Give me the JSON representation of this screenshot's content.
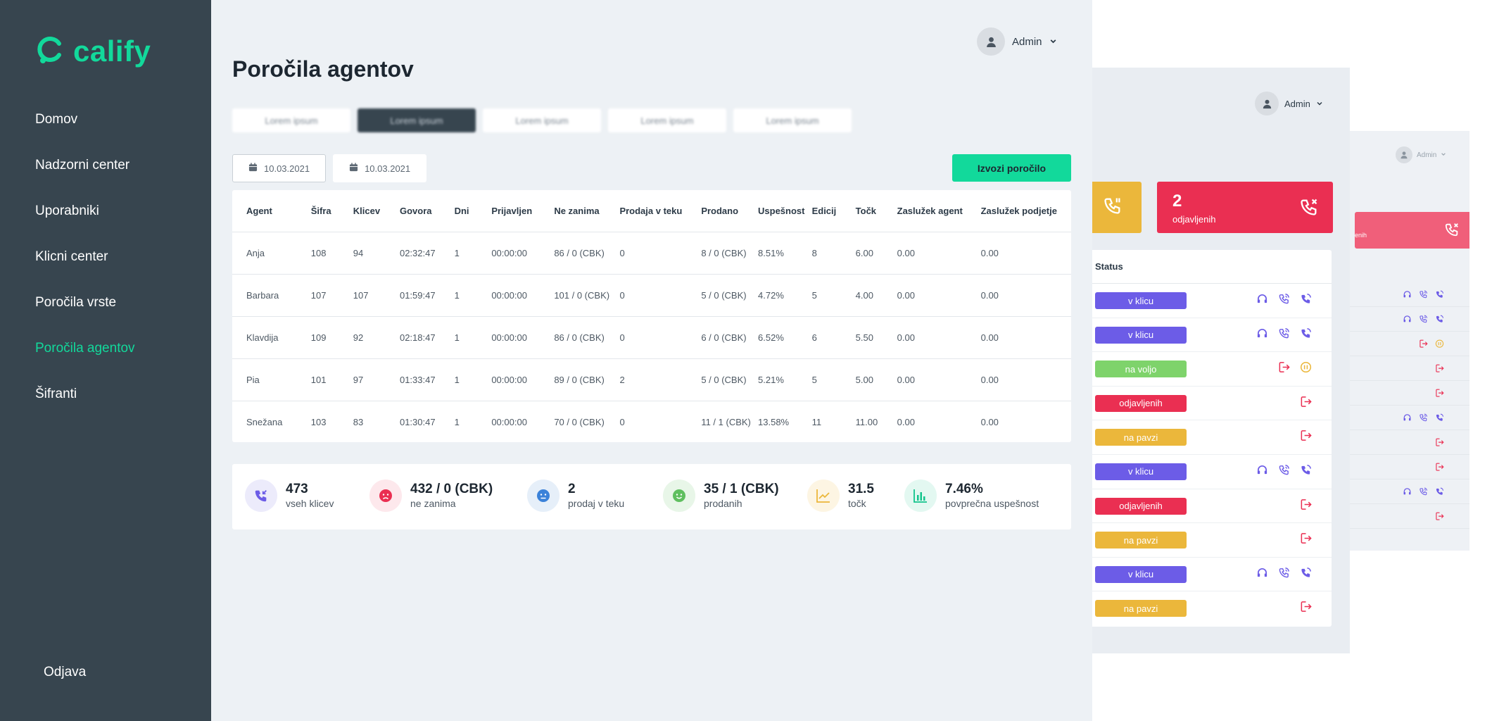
{
  "app": {
    "brand": "calify",
    "accent": "#12d99b",
    "sidebar_bg": "#37454f"
  },
  "sidebar": {
    "items": [
      {
        "label": "Domov",
        "active": false
      },
      {
        "label": "Nadzorni center",
        "active": false
      },
      {
        "label": "Uporabniki",
        "active": false
      },
      {
        "label": "Klicni center",
        "active": false
      },
      {
        "label": "Poročila vrste",
        "active": false
      },
      {
        "label": "Poročila agentov",
        "active": true
      },
      {
        "label": "Šifranti",
        "active": false
      }
    ],
    "logout": "Odjava"
  },
  "header": {
    "user": "Admin",
    "avatar_icon": "user-icon",
    "chevron_icon": "chevron-down-icon"
  },
  "main": {
    "title": "Poročila agentov",
    "tabs": [
      {
        "label": "Lorem ipsum",
        "active": false
      },
      {
        "label": "Lorem ipsum",
        "active": true
      },
      {
        "label": "Lorem ipsum",
        "active": false
      },
      {
        "label": "Lorem ipsum",
        "active": false
      },
      {
        "label": "Lorem ipsum",
        "active": false
      }
    ],
    "date_from": "10.03.2021",
    "date_to": "10.03.2021",
    "export_label": "Izvozi poročilo"
  },
  "table": {
    "columns": [
      "Agent",
      "Šifra",
      "Klicev",
      "Govora",
      "Dni",
      "Prijavljen",
      "Ne zanima",
      "Prodaja v teku",
      "Prodano",
      "Uspešnost",
      "Edicij",
      "Točk",
      "Zaslužek agent",
      "Zaslužek podjetje"
    ],
    "rows": [
      [
        "Anja",
        "108",
        "94",
        "02:32:47",
        "1",
        "00:00:00",
        "86 / 0 (CBK)",
        "0",
        "8 / 0 (CBK)",
        "8.51%",
        "8",
        "6.00",
        "0.00",
        "0.00"
      ],
      [
        "Barbara",
        "107",
        "107",
        "01:59:47",
        "1",
        "00:00:00",
        "101 / 0 (CBK)",
        "0",
        "5 / 0 (CBK)",
        "4.72%",
        "5",
        "4.00",
        "0.00",
        "0.00"
      ],
      [
        "Klavdija",
        "109",
        "92",
        "02:18:47",
        "1",
        "00:00:00",
        "86 / 0 (CBK)",
        "0",
        "6 / 0 (CBK)",
        "6.52%",
        "6",
        "5.50",
        "0.00",
        "0.00"
      ],
      [
        "Pia",
        "101",
        "97",
        "01:33:47",
        "1",
        "00:00:00",
        "89 / 0 (CBK)",
        "2",
        "5 / 0 (CBK)",
        "5.21%",
        "5",
        "5.00",
        "0.00",
        "0.00"
      ],
      [
        "Snežana",
        "103",
        "83",
        "01:30:47",
        "1",
        "00:00:00",
        "70 / 0 (CBK)",
        "0",
        "11 / 1 (CBK)",
        "13.58%",
        "11",
        "11.00",
        "0.00",
        "0.00"
      ]
    ]
  },
  "stats": [
    {
      "value": "473",
      "label": "vseh klicev",
      "icon": "incoming-call-icon",
      "color": "#6c5ce7",
      "bg": "#ecebfb"
    },
    {
      "value": "432 / 0 (CBK)",
      "label": "ne zanima",
      "icon": "angry-face-icon",
      "color": "#ea2f52",
      "bg": "#fde8ec"
    },
    {
      "value": "2",
      "label": "prodaj v teku",
      "icon": "neutral-face-icon",
      "color": "#3b82d9",
      "bg": "#e6eff9"
    },
    {
      "value": "35 / 1 (CBK)",
      "label": "prodanih",
      "icon": "happy-face-icon",
      "color": "#5fbf5f",
      "bg": "#e8f6e8"
    },
    {
      "value": "31.5",
      "label": "točk",
      "icon": "trend-up-icon",
      "color": "#ebb73b",
      "bg": "#fdf5e3"
    },
    {
      "value": "7.46%",
      "label": "povprečna uspešnost",
      "icon": "bar-chart-icon",
      "color": "#12c48c",
      "bg": "#e3f8f1"
    }
  ],
  "panel2": {
    "user": "Admin",
    "counter": {
      "value": "2",
      "label": "odjavljenih",
      "color": "#ea2f52"
    },
    "status_header": "Status",
    "statuses": [
      {
        "label": "v klicu",
        "color": "#6c5ce7",
        "icons": [
          "headset-icon",
          "listen-icon",
          "call-icon"
        ]
      },
      {
        "label": "v klicu",
        "color": "#6c5ce7",
        "icons": [
          "headset-icon",
          "listen-icon",
          "call-icon"
        ]
      },
      {
        "label": "na voljo",
        "color": "#7ed36b",
        "icons": [
          "logout-icon",
          "pause-icon"
        ]
      },
      {
        "label": "odjavljenih",
        "color": "#ea2f52",
        "icons": [
          "logout-icon"
        ]
      },
      {
        "label": "na pavzi",
        "color": "#ebb73b",
        "icons": [
          "logout-icon"
        ]
      },
      {
        "label": "v klicu",
        "color": "#6c5ce7",
        "icons": [
          "headset-icon",
          "listen-icon",
          "call-icon"
        ]
      },
      {
        "label": "odjavljenih",
        "color": "#ea2f52",
        "icons": [
          "logout-icon"
        ]
      },
      {
        "label": "na pavzi",
        "color": "#ebb73b",
        "icons": [
          "logout-icon"
        ]
      },
      {
        "label": "v klicu",
        "color": "#6c5ce7",
        "icons": [
          "headset-icon",
          "listen-icon",
          "call-icon"
        ]
      },
      {
        "label": "na pavzi",
        "color": "#ebb73b",
        "icons": [
          "logout-icon"
        ]
      }
    ]
  },
  "panel3": {
    "user": "Admin",
    "counter_label": "enih",
    "rows": [
      [
        "headset-icon",
        "listen-icon",
        "call-icon"
      ],
      [
        "headset-icon",
        "listen-icon",
        "call-icon"
      ],
      [
        "logout-icon",
        "pause-icon"
      ],
      [
        "logout-icon"
      ],
      [
        "logout-icon"
      ],
      [
        "headset-icon",
        "listen-icon",
        "call-icon"
      ],
      [
        "logout-icon"
      ],
      [
        "logout-icon"
      ],
      [
        "headset-icon",
        "listen-icon",
        "call-icon"
      ],
      [
        "logout-icon"
      ]
    ]
  }
}
